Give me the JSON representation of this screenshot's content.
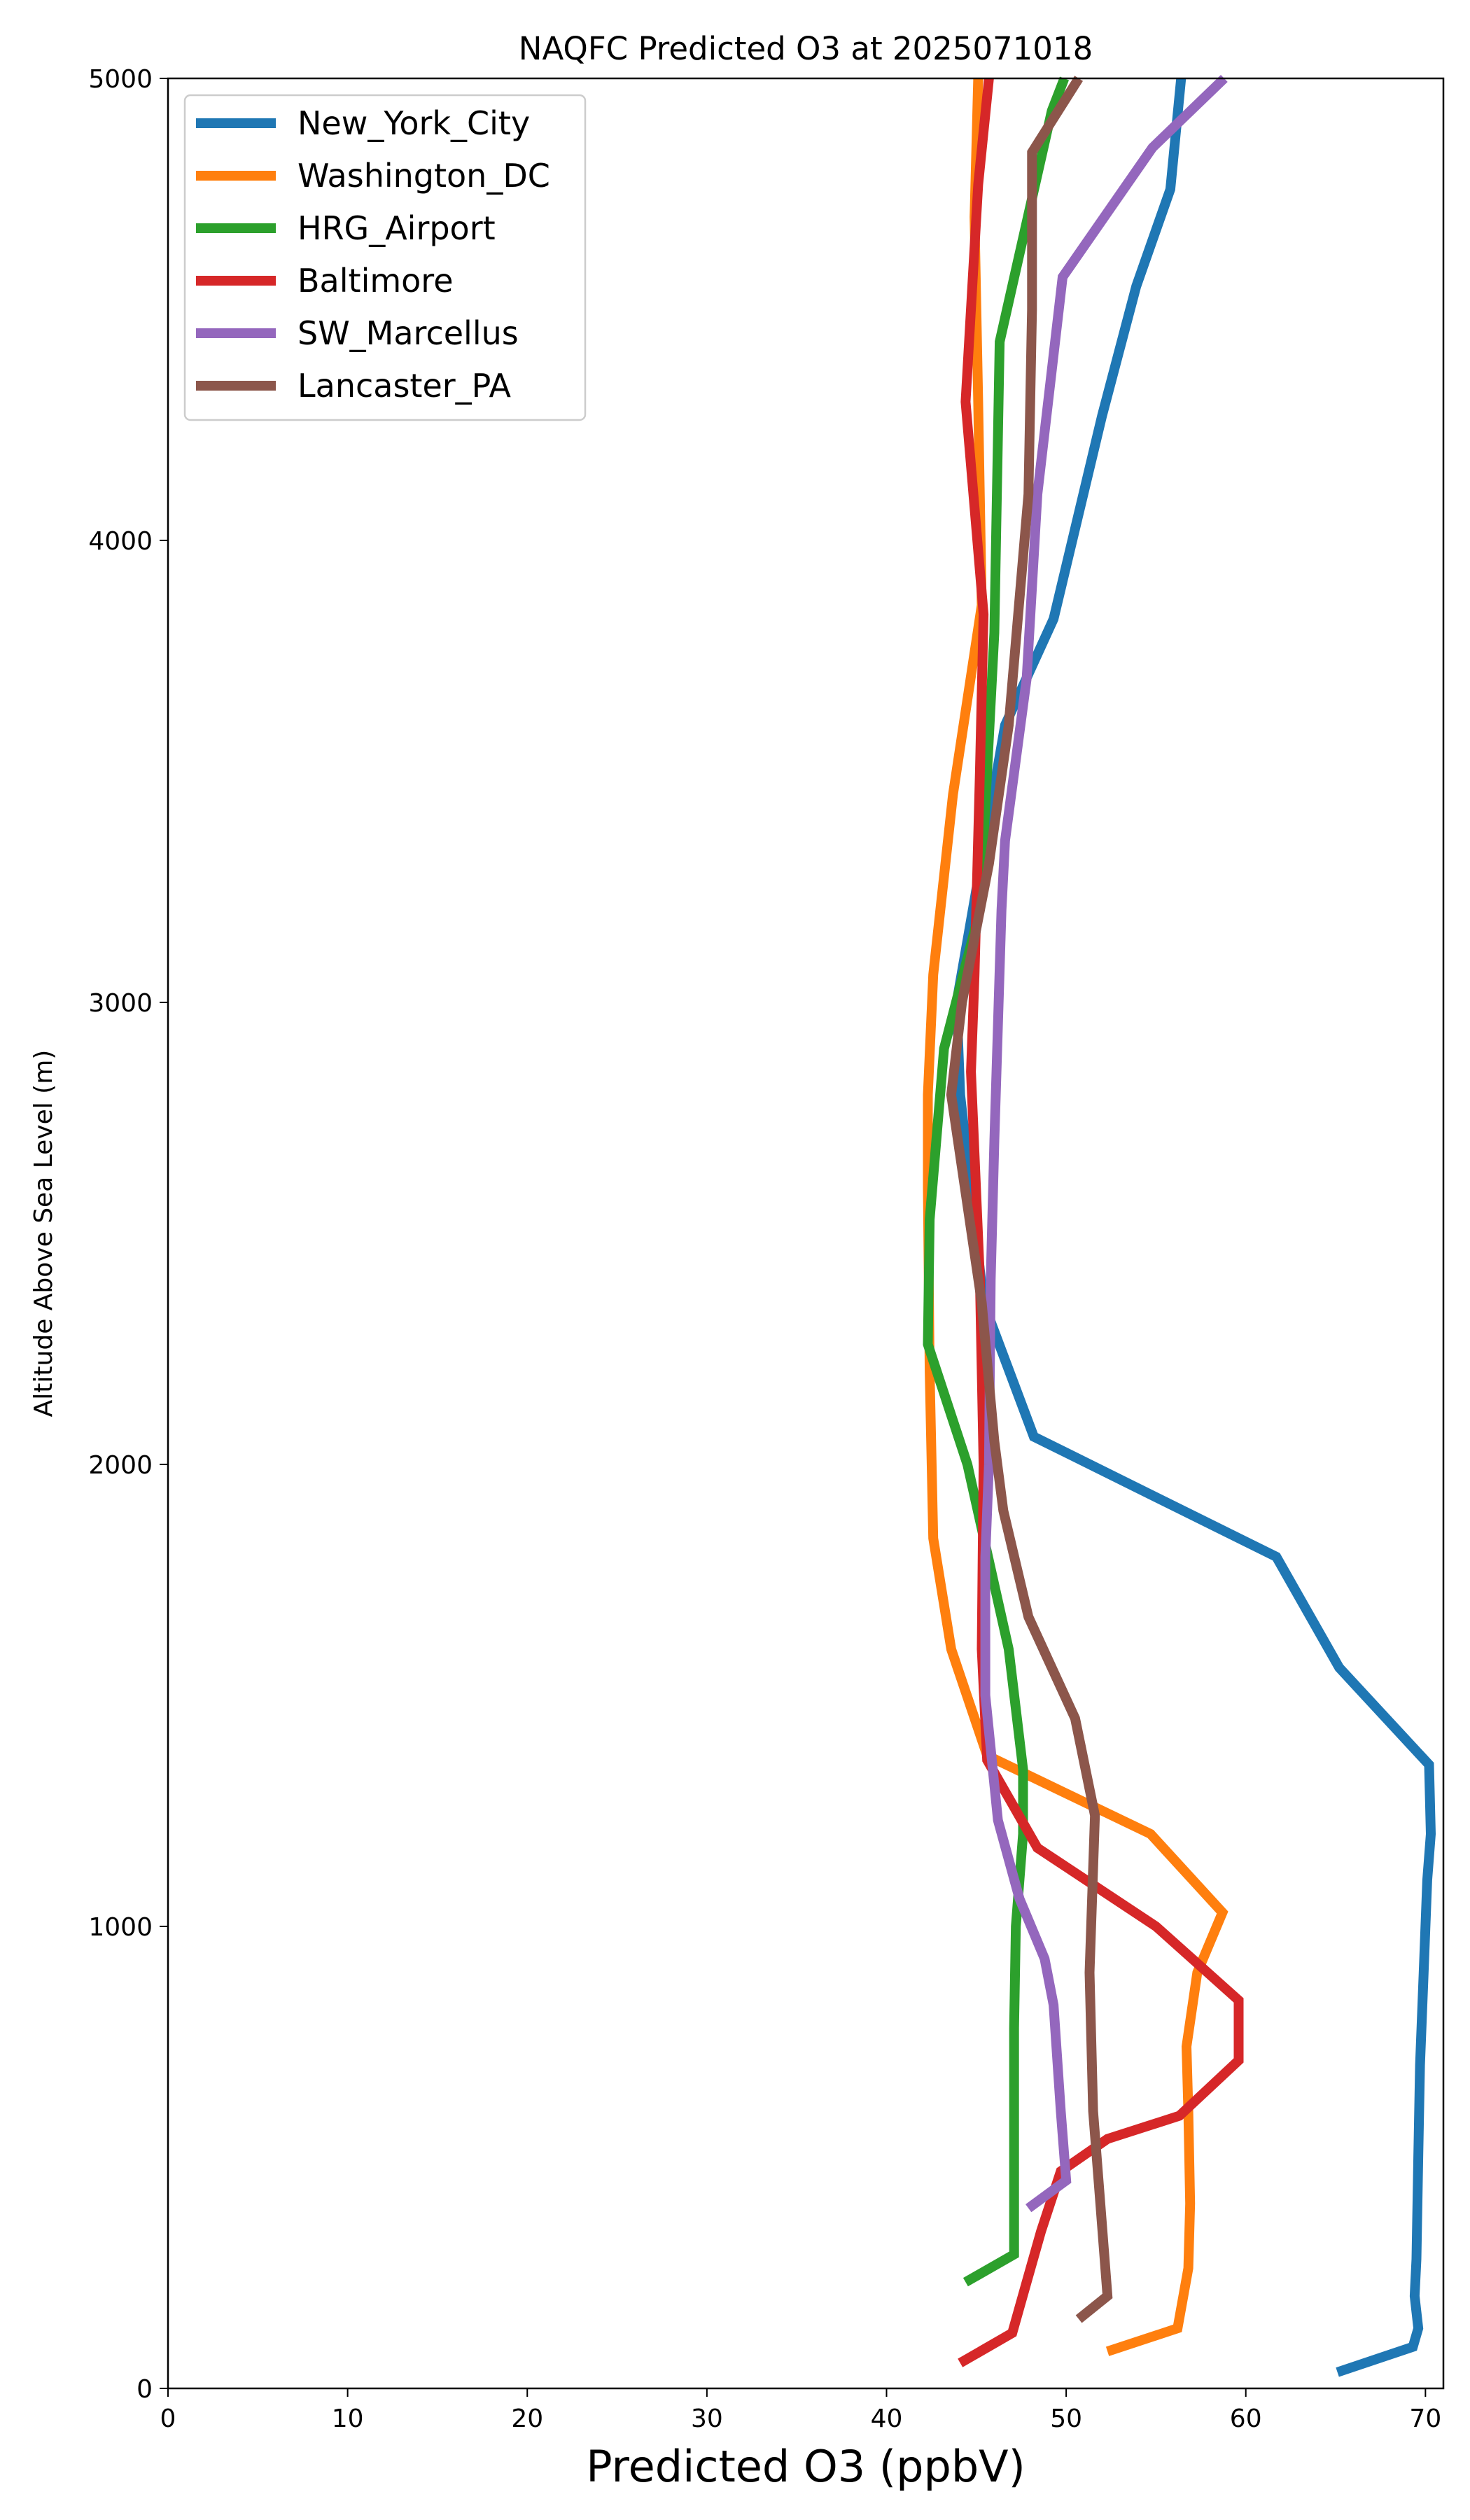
{
  "chart_data": {
    "type": "line",
    "title": "NAQFC Predicted O3 at 2025071018",
    "xlabel": "Predicted O3 (ppbV)",
    "ylabel": "Altitude Above Sea Level (m)",
    "xlim": [
      0,
      71
    ],
    "ylim": [
      0,
      5000
    ],
    "xticks": [
      0,
      10,
      20,
      30,
      40,
      50,
      60,
      70
    ],
    "yticks": [
      0,
      1000,
      2000,
      3000,
      4000,
      5000
    ],
    "grid": false,
    "legend_position": "top-left",
    "series": [
      {
        "name": "New_York_City",
        "color": "#1f77b4",
        "points": [
          [
            65.1,
            35
          ],
          [
            69.3,
            90
          ],
          [
            69.6,
            130
          ],
          [
            69.4,
            200
          ],
          [
            69.5,
            280
          ],
          [
            69.6,
            500
          ],
          [
            69.7,
            700
          ],
          [
            69.9,
            900
          ],
          [
            70.1,
            1100
          ],
          [
            70.3,
            1200
          ],
          [
            70.2,
            1350
          ],
          [
            65.2,
            1560
          ],
          [
            61.7,
            1800
          ],
          [
            48.2,
            2060
          ],
          [
            45.4,
            2350
          ],
          [
            44.1,
            2800
          ],
          [
            43.9,
            3000
          ],
          [
            46.6,
            3600
          ],
          [
            49.3,
            3830
          ],
          [
            52.0,
            4270
          ],
          [
            53.9,
            4550
          ],
          [
            55.8,
            4760
          ],
          [
            56.4,
            5000
          ]
        ]
      },
      {
        "name": "Washington_DC",
        "color": "#ff7f0e",
        "points": [
          [
            52.3,
            80
          ],
          [
            56.2,
            130
          ],
          [
            56.8,
            260
          ],
          [
            56.9,
            400
          ],
          [
            56.8,
            600
          ],
          [
            56.7,
            740
          ],
          [
            57.3,
            900
          ],
          [
            58.7,
            1030
          ],
          [
            54.7,
            1200
          ],
          [
            45.6,
            1370
          ],
          [
            43.6,
            1600
          ],
          [
            42.6,
            1840
          ],
          [
            42.4,
            2200
          ],
          [
            42.3,
            2600
          ],
          [
            42.3,
            2800
          ],
          [
            42.6,
            3060
          ],
          [
            43.7,
            3450
          ],
          [
            45.3,
            3860
          ],
          [
            45.1,
            4300
          ],
          [
            44.9,
            4700
          ],
          [
            45.1,
            5000
          ]
        ]
      },
      {
        "name": "HRG_Airport",
        "color": "#2ca02c",
        "points": [
          [
            44.4,
            230
          ],
          [
            47.1,
            290
          ],
          [
            47.1,
            400
          ],
          [
            47.1,
            600
          ],
          [
            47.1,
            780
          ],
          [
            47.2,
            1000
          ],
          [
            47.6,
            1200
          ],
          [
            47.6,
            1340
          ],
          [
            46.8,
            1600
          ],
          [
            44.5,
            2000
          ],
          [
            42.3,
            2260
          ],
          [
            42.4,
            2530
          ],
          [
            43.2,
            2900
          ],
          [
            45.2,
            3200
          ],
          [
            46.0,
            3800
          ],
          [
            46.3,
            4430
          ],
          [
            49.2,
            4930
          ],
          [
            49.9,
            5000
          ]
        ]
      },
      {
        "name": "Baltimore",
        "color": "#d62728",
        "points": [
          [
            44.1,
            55
          ],
          [
            47.0,
            120
          ],
          [
            47.8,
            230
          ],
          [
            48.6,
            340
          ],
          [
            49.7,
            470
          ],
          [
            52.3,
            540
          ],
          [
            56.3,
            590
          ],
          [
            59.6,
            710
          ],
          [
            59.6,
            840
          ],
          [
            55.0,
            1000
          ],
          [
            48.4,
            1170
          ],
          [
            45.6,
            1360
          ],
          [
            45.3,
            1600
          ],
          [
            45.4,
            2000
          ],
          [
            45.2,
            2400
          ],
          [
            44.7,
            2850
          ],
          [
            44.9,
            3060
          ],
          [
            45.2,
            3500
          ],
          [
            45.4,
            3840
          ],
          [
            44.4,
            4300
          ],
          [
            45.1,
            4770
          ],
          [
            45.7,
            5000
          ]
        ]
      },
      {
        "name": "SW_Marcellus",
        "color": "#9467bd",
        "points": [
          [
            47.9,
            390
          ],
          [
            50.0,
            450
          ],
          [
            49.7,
            600
          ],
          [
            49.3,
            830
          ],
          [
            48.8,
            930
          ],
          [
            47.4,
            1060
          ],
          [
            46.2,
            1230
          ],
          [
            45.5,
            1500
          ],
          [
            45.5,
            1800
          ],
          [
            45.7,
            2000
          ],
          [
            45.8,
            2400
          ],
          [
            46.0,
            2700
          ],
          [
            46.4,
            3200
          ],
          [
            46.6,
            3350
          ],
          [
            47.8,
            3700
          ],
          [
            48.4,
            4100
          ],
          [
            49.8,
            4570
          ],
          [
            54.8,
            4850
          ],
          [
            58.8,
            5000
          ]
        ]
      },
      {
        "name": "Lancaster_PA",
        "color": "#8c564b",
        "points": [
          [
            50.7,
            150
          ],
          [
            52.3,
            200
          ],
          [
            51.9,
            400
          ],
          [
            51.5,
            600
          ],
          [
            51.3,
            900
          ],
          [
            51.6,
            1240
          ],
          [
            50.5,
            1450
          ],
          [
            47.9,
            1670
          ],
          [
            46.5,
            1900
          ],
          [
            46.0,
            2050
          ],
          [
            45.3,
            2350
          ],
          [
            43.6,
            2800
          ],
          [
            44.2,
            3000
          ],
          [
            45.7,
            3300
          ],
          [
            46.8,
            3600
          ],
          [
            47.9,
            4100
          ],
          [
            48.1,
            4500
          ],
          [
            48.1,
            4840
          ],
          [
            50.7,
            5000
          ]
        ]
      }
    ]
  }
}
